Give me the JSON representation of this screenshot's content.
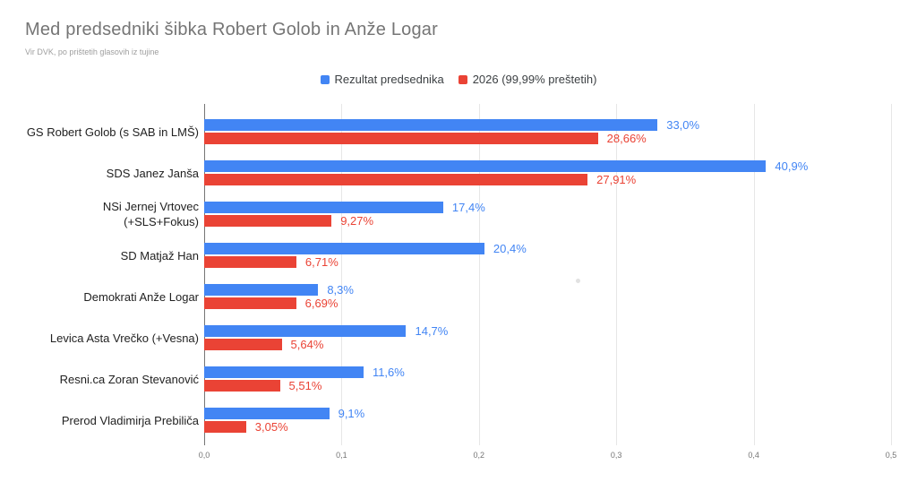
{
  "title": "Med predsedniki šibka Robert Golob in Anže Logar",
  "subtitle": "Vir DVK, po prištetih glasovih iz tujine",
  "colors": {
    "blue": "#4285F4",
    "red": "#EA4335"
  },
  "chart_data": {
    "type": "bar",
    "orientation": "horizontal",
    "title": "Med predsedniki šibka Robert Golob in Anže Logar",
    "subtitle": "Vir DVK, po prištetih glasovih iz tujine",
    "legend_position": "top",
    "grid": true,
    "categories": [
      "GS Robert Golob (s SAB in LMŠ)",
      "SDS Janez Janša",
      "NSi Jernej Vrtovec (+SLS+Fokus)",
      "SD Matjaž Han",
      "Demokrati Anže Logar",
      "Levica Asta Vrečko (+Vesna)",
      "Resni.ca Zoran Stevanović",
      "Prerod Vladimirja Prebiliča"
    ],
    "series": [
      {
        "name": "Rezultat predsednika",
        "color": "#4285F4",
        "values": [
          33.0,
          40.9,
          17.4,
          20.4,
          8.3,
          14.7,
          11.6,
          9.1
        ],
        "labels": [
          "33,0%",
          "40,9%",
          "17,4%",
          "20,4%",
          "8,3%",
          "14,7%",
          "11,6%",
          "9,1%"
        ]
      },
      {
        "name": "2026 (99,99% preštetih)",
        "color": "#EA4335",
        "values": [
          28.66,
          27.91,
          9.27,
          6.71,
          6.69,
          5.64,
          5.51,
          3.05
        ],
        "labels": [
          "28,66%",
          "27,91%",
          "9,27%",
          "6,71%",
          "6,69%",
          "5,64%",
          "5,51%",
          "3,05%"
        ]
      }
    ],
    "x_axis": {
      "min": 0,
      "max": 0.5,
      "tick_labels": [
        "0,0",
        "0,1",
        "0,2",
        "0,3",
        "0,4",
        "0,5"
      ]
    }
  }
}
